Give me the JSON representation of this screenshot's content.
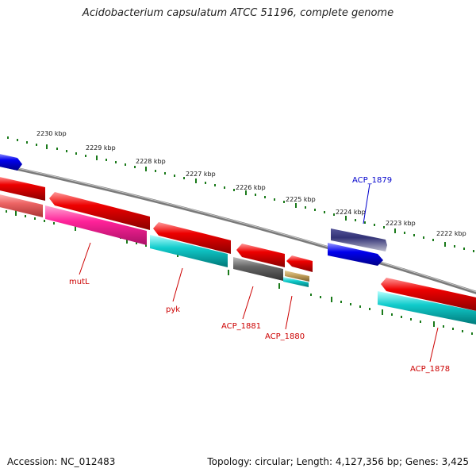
{
  "title": "Acidobacterium capsulatum ATCC 51196, complete genome",
  "footer": {
    "accession_label": "Accession:",
    "accession": "NC_012483",
    "topology_label": "Topology:",
    "topology": "circular",
    "length_label": "Length:",
    "length": "4,127,356 bp",
    "genes_label": "Genes:",
    "genes": "3,425"
  },
  "kbp_ticks": [
    "2230 kbp",
    "2229 kbp",
    "2228 kbp",
    "2227 kbp",
    "2226 kbp",
    "2225 kbp",
    "2224 kbp",
    "2223 kbp",
    "2222 kbp"
  ],
  "gene_labels": {
    "acp1879": "ACP_1879",
    "mutl": "mutL",
    "pyk": "pyk",
    "acp1881": "ACP_1881",
    "acp1880": "ACP_1880",
    "acp1878": "ACP_1878"
  },
  "colors": {
    "backbone": "#888888",
    "tick": "#1a7a1a",
    "red_gene": "#e00000",
    "pink_gene": "#ff3399",
    "cyan_gene": "#00cccc",
    "blue_gene": "#0000ee",
    "navy_gene": "#333399",
    "gray_gene": "#666666",
    "olive_gene": "#bb9955",
    "salmon_gene": "#ff7777",
    "label_red": "#cc0000",
    "label_blue": "#0000cc"
  }
}
